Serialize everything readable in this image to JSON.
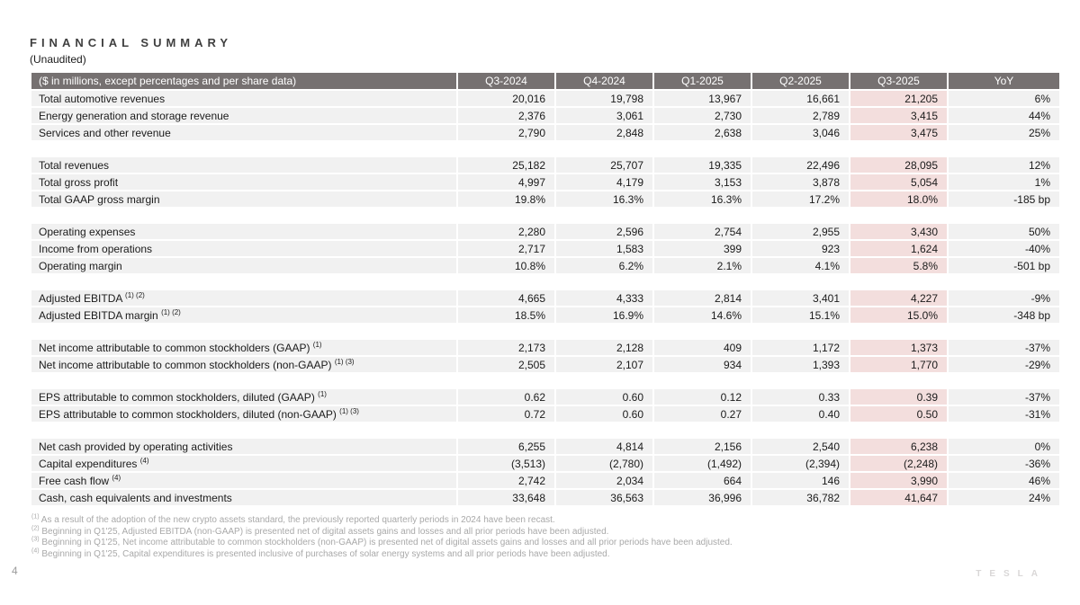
{
  "page": {
    "title": "FINANCIAL SUMMARY",
    "subtitle": "(Unaudited)",
    "page_number": "4",
    "brand_logo": "TESLA"
  },
  "colors": {
    "header_bg": "#767171",
    "row_bg": "#f1f1f1",
    "highlight_bg": "#f3dedd",
    "footnote_text": "#a9a9a9"
  },
  "table": {
    "columns": [
      "($ in millions, except percentages and per share data)",
      "Q3-2024",
      "Q4-2024",
      "Q1-2025",
      "Q2-2025",
      "Q3-2025",
      "YoY"
    ],
    "highlight_column_index": 5,
    "sections": [
      {
        "rows": [
          {
            "label": "Total automotive revenues",
            "superscript": "",
            "values": [
              "20,016",
              "19,798",
              "13,967",
              "16,661",
              "21,205",
              "6%"
            ]
          },
          {
            "label": "Energy generation and storage revenue",
            "superscript": "",
            "values": [
              "2,376",
              "3,061",
              "2,730",
              "2,789",
              "3,415",
              "44%"
            ]
          },
          {
            "label": "Services and other revenue",
            "superscript": "",
            "values": [
              "2,790",
              "2,848",
              "2,638",
              "3,046",
              "3,475",
              "25%"
            ]
          }
        ]
      },
      {
        "rows": [
          {
            "label": "Total revenues",
            "superscript": "",
            "values": [
              "25,182",
              "25,707",
              "19,335",
              "22,496",
              "28,095",
              "12%"
            ]
          },
          {
            "label": "Total gross profit",
            "superscript": "",
            "values": [
              "4,997",
              "4,179",
              "3,153",
              "3,878",
              "5,054",
              "1%"
            ]
          },
          {
            "label": "Total GAAP gross margin",
            "superscript": "",
            "values": [
              "19.8%",
              "16.3%",
              "16.3%",
              "17.2%",
              "18.0%",
              "-185 bp"
            ]
          }
        ]
      },
      {
        "rows": [
          {
            "label": "Operating expenses",
            "superscript": "",
            "values": [
              "2,280",
              "2,596",
              "2,754",
              "2,955",
              "3,430",
              "50%"
            ]
          },
          {
            "label": "Income from operations",
            "superscript": "",
            "values": [
              "2,717",
              "1,583",
              "399",
              "923",
              "1,624",
              "-40%"
            ]
          },
          {
            "label": "Operating margin",
            "superscript": "",
            "values": [
              "10.8%",
              "6.2%",
              "2.1%",
              "4.1%",
              "5.8%",
              "-501 bp"
            ]
          }
        ]
      },
      {
        "rows": [
          {
            "label": "Adjusted EBITDA",
            "superscript": "(1) (2)",
            "values": [
              "4,665",
              "4,333",
              "2,814",
              "3,401",
              "4,227",
              "-9%"
            ]
          },
          {
            "label": "Adjusted EBITDA margin",
            "superscript": "(1) (2)",
            "values": [
              "18.5%",
              "16.9%",
              "14.6%",
              "15.1%",
              "15.0%",
              "-348 bp"
            ]
          }
        ]
      },
      {
        "rows": [
          {
            "label": "Net income attributable to common stockholders (GAAP)",
            "superscript": "(1)",
            "values": [
              "2,173",
              "2,128",
              "409",
              "1,172",
              "1,373",
              "-37%"
            ]
          },
          {
            "label": "Net income attributable to common stockholders (non-GAAP)",
            "superscript": "(1) (3)",
            "values": [
              "2,505",
              "2,107",
              "934",
              "1,393",
              "1,770",
              "-29%"
            ]
          }
        ]
      },
      {
        "rows": [
          {
            "label": "EPS attributable to common stockholders, diluted (GAAP)",
            "superscript": "(1)",
            "values": [
              "0.62",
              "0.60",
              "0.12",
              "0.33",
              "0.39",
              "-37%"
            ]
          },
          {
            "label": "EPS attributable to common stockholders, diluted (non-GAAP)",
            "superscript": "(1) (3)",
            "values": [
              "0.72",
              "0.60",
              "0.27",
              "0.40",
              "0.50",
              "-31%"
            ]
          }
        ]
      },
      {
        "rows": [
          {
            "label": "Net cash provided by operating activities",
            "superscript": "",
            "values": [
              "6,255",
              "4,814",
              "2,156",
              "2,540",
              "6,238",
              "0%"
            ]
          },
          {
            "label": "Capital expenditures",
            "superscript": "(4)",
            "values": [
              "(3,513)",
              "(2,780)",
              "(1,492)",
              "(2,394)",
              "(2,248)",
              "-36%"
            ]
          },
          {
            "label": "Free cash flow",
            "superscript": "(4)",
            "values": [
              "2,742",
              "2,034",
              "664",
              "146",
              "3,990",
              "46%"
            ]
          },
          {
            "label": "Cash, cash equivalents and investments",
            "superscript": "",
            "values": [
              "33,648",
              "36,563",
              "36,996",
              "36,782",
              "41,647",
              "24%"
            ]
          }
        ]
      }
    ]
  },
  "footnotes": [
    {
      "marker": "(1)",
      "text": "As a result of the adoption of the new crypto assets standard, the previously reported quarterly periods in 2024 have been recast."
    },
    {
      "marker": "(2)",
      "text": "Beginning in Q1'25, Adjusted EBITDA (non-GAAP) is presented net of digital assets gains and losses and all prior periods have been adjusted."
    },
    {
      "marker": "(3)",
      "text": "Beginning in Q1'25, Net income attributable to common stockholders (non-GAAP) is presented net of digital assets gains and losses and all prior periods have been adjusted."
    },
    {
      "marker": "(4)",
      "text": "Beginning in Q1'25, Capital expenditures is presented inclusive of purchases of solar energy systems and all prior periods have been adjusted."
    }
  ]
}
